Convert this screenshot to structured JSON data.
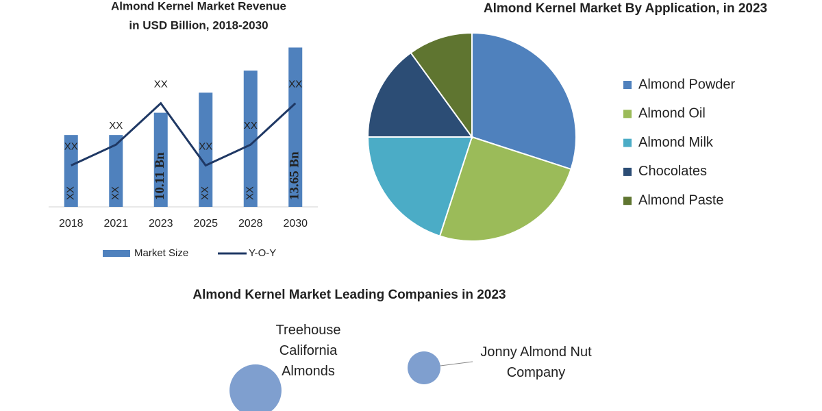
{
  "chart_data": [
    {
      "type": "bar_line",
      "title": [
        "Almond Kernel Market Revenue",
        "in USD Billion, 2018-2030"
      ],
      "categories": [
        "2018",
        "2021",
        "2023",
        "2025",
        "2028",
        "2030"
      ],
      "series": [
        {
          "name": "Market Size",
          "type": "bar",
          "color": "#4f81bd",
          "values": [
            8.9,
            8.9,
            10.11,
            11.2,
            12.4,
            13.65
          ],
          "value_labels": [
            "XX",
            "XX",
            "10.11 Bn",
            "XX",
            "XX",
            "13.65 Bn"
          ]
        },
        {
          "name": "Y-O-Y",
          "type": "line",
          "axis": "y2",
          "color": "#1f3864",
          "values": [
            2,
            3,
            5,
            2,
            3,
            5
          ],
          "value_labels": [
            "XX",
            "XX",
            "XX",
            "XX",
            "XX",
            "XX"
          ]
        }
      ],
      "ylim": [
        5,
        14
      ],
      "y2lim": [
        0,
        8
      ]
    },
    {
      "type": "pie",
      "title": "Almond Kernel Market By Application, in 2023",
      "categories": [
        "Almond Powder",
        "Almond Oil",
        "Almond Milk",
        "Chocolates",
        "Almond Paste"
      ],
      "values": [
        30,
        25,
        20,
        15,
        10
      ],
      "colors": [
        "#4f81bd",
        "#9bbb59",
        "#4bacc6",
        "#2c4d75",
        "#5f7530"
      ]
    },
    {
      "type": "bubble",
      "title": "Almond Kernel Market Leading Companies in 2023",
      "categories": [
        "Treehouse California Almonds",
        "Jonny Almond Nut Company"
      ],
      "values": [
        2.5,
        1
      ],
      "color": "#7f9fcf"
    }
  ]
}
